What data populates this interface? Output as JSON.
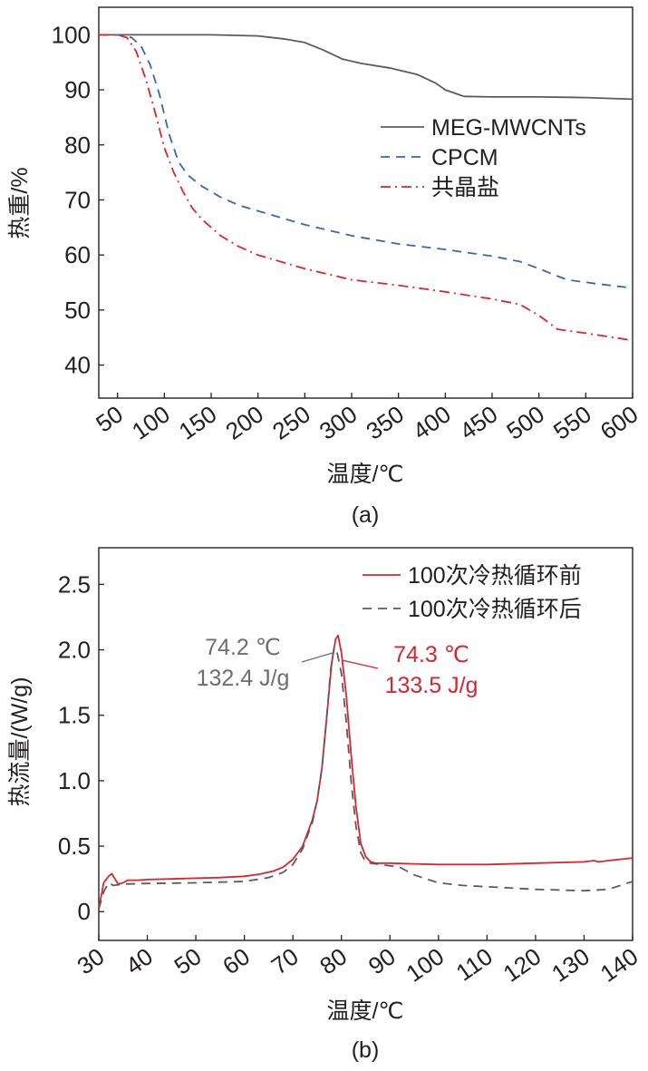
{
  "chart_data": [
    {
      "type": "line",
      "title": "",
      "caption": "(a)",
      "xlabel": "温度/℃",
      "ylabel": "热重/%",
      "xlim": [
        30,
        600
      ],
      "ylim": [
        34,
        105
      ],
      "xticks": [
        50,
        100,
        150,
        200,
        250,
        300,
        350,
        400,
        450,
        500,
        550,
        600
      ],
      "yticks": [
        40,
        50,
        60,
        70,
        80,
        90,
        100
      ],
      "legend_position": "top-right",
      "series": [
        {
          "name": "MEG-MWCNTs",
          "color": "#5b5b5b",
          "style": "solid",
          "x": [
            30,
            50,
            100,
            150,
            200,
            230,
            250,
            270,
            290,
            310,
            340,
            370,
            390,
            400,
            420,
            450,
            500,
            550,
            600
          ],
          "y": [
            100,
            100,
            100,
            100,
            99.8,
            99.2,
            98.6,
            97.2,
            95.6,
            94.8,
            94.0,
            92.8,
            91.2,
            90.0,
            88.8,
            88.7,
            88.7,
            88.6,
            88.3
          ]
        },
        {
          "name": "CPCM",
          "color": "#3a66ad",
          "style": "dashed",
          "x": [
            30,
            50,
            65,
            75,
            85,
            95,
            105,
            115,
            125,
            140,
            160,
            180,
            200,
            250,
            300,
            350,
            400,
            450,
            480,
            500,
            530,
            560,
            600
          ],
          "y": [
            100,
            100,
            99.5,
            98,
            94.5,
            89,
            82,
            77,
            74.5,
            72.5,
            70.5,
            69,
            68,
            65.5,
            63.5,
            62,
            61,
            59.8,
            58.8,
            57.5,
            55.5,
            54.8,
            54
          ]
        },
        {
          "name": "共晶盐",
          "color": "#d8262f",
          "style": "dashdot",
          "x": [
            30,
            50,
            60,
            70,
            80,
            90,
            100,
            110,
            120,
            130,
            140,
            160,
            180,
            200,
            250,
            300,
            350,
            400,
            450,
            480,
            500,
            520,
            550,
            600
          ],
          "y": [
            100,
            100,
            99.5,
            97,
            92,
            86,
            79.5,
            75,
            71.5,
            68.5,
            66.5,
            63.5,
            61.5,
            60,
            57.5,
            55.5,
            54.5,
            53.3,
            52,
            51,
            49,
            46.5,
            45.8,
            44.5
          ]
        }
      ]
    },
    {
      "type": "line",
      "title": "",
      "caption": "(b)",
      "xlabel": "温度/℃",
      "ylabel": "热流量/(W/g)",
      "xlim": [
        30,
        140
      ],
      "ylim": [
        -0.22,
        2.78
      ],
      "xticks": [
        30,
        40,
        50,
        60,
        70,
        80,
        90,
        100,
        110,
        120,
        130,
        140
      ],
      "yticks": [
        0,
        0.5,
        1.0,
        1.5,
        2.0,
        2.5
      ],
      "ytick_labels": [
        "0",
        "0.5",
        "1.0",
        "1.5",
        "2.0",
        "2.5"
      ],
      "legend_position": "top-right",
      "series": [
        {
          "name": "100次冷热循环前",
          "color": "#d8262f",
          "style": "solid",
          "x": [
            30,
            30.5,
            31,
            32,
            32.7,
            33.5,
            34,
            35,
            36,
            38,
            40,
            45,
            50,
            55,
            60,
            63,
            66,
            68,
            70,
            72,
            74,
            75,
            76,
            77,
            78,
            78.8,
            79.3,
            80,
            81,
            82,
            83,
            84,
            85,
            86,
            87,
            90,
            95,
            100,
            110,
            120,
            130,
            132,
            133,
            135,
            140
          ],
          "y": [
            0.03,
            0.12,
            0.22,
            0.27,
            0.29,
            0.24,
            0.21,
            0.22,
            0.24,
            0.24,
            0.245,
            0.25,
            0.255,
            0.26,
            0.27,
            0.285,
            0.31,
            0.34,
            0.4,
            0.5,
            0.7,
            0.85,
            1.1,
            1.5,
            1.9,
            2.08,
            2.11,
            1.98,
            1.65,
            1.2,
            0.8,
            0.52,
            0.42,
            0.38,
            0.37,
            0.37,
            0.365,
            0.36,
            0.36,
            0.37,
            0.38,
            0.39,
            0.38,
            0.39,
            0.41
          ]
        },
        {
          "name": "100次冷热循环后",
          "color": "#5b5b5b",
          "style": "dashed",
          "x": [
            30,
            31,
            32,
            33,
            35,
            40,
            50,
            60,
            65,
            68,
            70,
            72,
            74,
            75,
            76,
            77,
            77.8,
            78.5,
            79,
            80,
            81,
            82,
            83,
            84,
            85,
            86,
            88,
            92,
            95,
            100,
            105,
            110,
            120,
            130,
            135,
            140
          ],
          "y": [
            0.02,
            0.15,
            0.22,
            0.2,
            0.21,
            0.215,
            0.22,
            0.23,
            0.26,
            0.3,
            0.36,
            0.48,
            0.68,
            0.85,
            1.1,
            1.5,
            1.85,
            2.02,
            2.0,
            1.82,
            1.45,
            1.0,
            0.65,
            0.45,
            0.38,
            0.37,
            0.36,
            0.34,
            0.28,
            0.22,
            0.2,
            0.19,
            0.17,
            0.16,
            0.17,
            0.23
          ]
        }
      ],
      "annotations": [
        {
          "series": "100次冷热循环后",
          "text_lines": [
            "74.2 ℃",
            "132.4 J/g"
          ],
          "color": "#6d6e71",
          "x": 78.5,
          "y": 1.98
        },
        {
          "series": "100次冷热循环前",
          "text_lines": [
            "74.3 ℃",
            "133.5 J/g"
          ],
          "color": "#d8262f",
          "x": 80.2,
          "y": 1.92
        }
      ]
    }
  ]
}
